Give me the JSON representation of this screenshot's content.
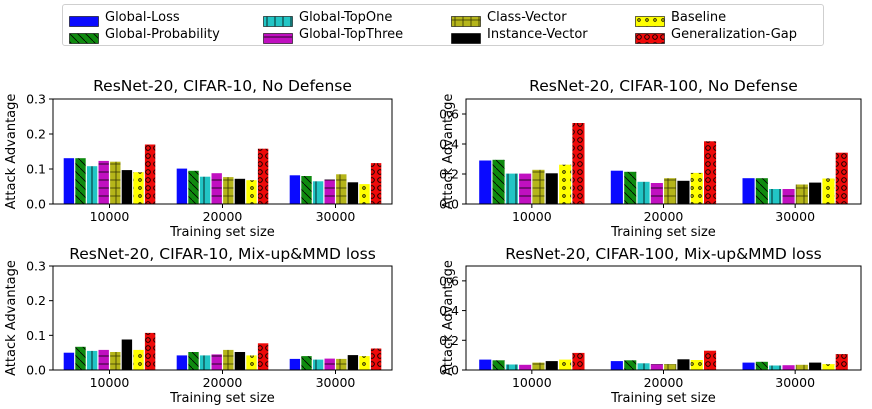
{
  "legend": {
    "items": [
      {
        "label": "Global-Loss",
        "color": "#0a0aff",
        "pattern": "none"
      },
      {
        "label": "Global-Probability",
        "color": "#0f8a0f",
        "pattern": "diag"
      },
      {
        "label": "Global-TopOne",
        "color": "#22c5c5",
        "pattern": "vline"
      },
      {
        "label": "Global-TopThree",
        "color": "#c010c0",
        "pattern": "hline"
      },
      {
        "label": "Class-Vector",
        "color": "#b5b51a",
        "pattern": "cross"
      },
      {
        "label": "Instance-Vector",
        "color": "#000000",
        "pattern": "none"
      },
      {
        "label": "Baseline",
        "color": "#ffff00",
        "pattern": "dots"
      },
      {
        "label": "Generalization-Gap",
        "color": "#ee0a0a",
        "pattern": "rings"
      }
    ]
  },
  "chart_data": [
    {
      "type": "bar",
      "title": "ResNet-20, CIFAR-10, No Defense",
      "xlabel": "Training set size",
      "ylabel": "Attack Advantage",
      "categories": [
        "10000",
        "20000",
        "30000"
      ],
      "ylim": [
        0,
        0.3
      ],
      "yticks": [
        "0.0",
        "0.1",
        "0.2",
        "0.3"
      ],
      "series": [
        {
          "name": "Global-Loss",
          "values": [
            0.131,
            0.101,
            0.082
          ]
        },
        {
          "name": "Global-Probability",
          "values": [
            0.131,
            0.095,
            0.08
          ]
        },
        {
          "name": "Global-TopOne",
          "values": [
            0.108,
            0.078,
            0.065
          ]
        },
        {
          "name": "Global-TopThree",
          "values": [
            0.123,
            0.088,
            0.07
          ]
        },
        {
          "name": "Class-Vector",
          "values": [
            0.121,
            0.077,
            0.085
          ]
        },
        {
          "name": "Instance-Vector",
          "values": [
            0.097,
            0.072,
            0.062
          ]
        },
        {
          "name": "Baseline",
          "values": [
            0.091,
            0.068,
            0.057
          ]
        },
        {
          "name": "Generalization-Gap",
          "values": [
            0.17,
            0.158,
            0.117
          ]
        }
      ]
    },
    {
      "type": "bar",
      "title": "ResNet-20, CIFAR-100, No Defense",
      "xlabel": "Training set size",
      "ylabel": "Attack Advantage",
      "categories": [
        "10000",
        "20000",
        "30000"
      ],
      "ylim": [
        0,
        0.7
      ],
      "yticks": [
        "0.0",
        "0.2",
        "0.4",
        "0.6"
      ],
      "series": [
        {
          "name": "Global-Loss",
          "values": [
            0.29,
            0.222,
            0.172
          ]
        },
        {
          "name": "Global-Probability",
          "values": [
            0.295,
            0.215,
            0.172
          ]
        },
        {
          "name": "Global-TopOne",
          "values": [
            0.203,
            0.148,
            0.1
          ]
        },
        {
          "name": "Global-TopThree",
          "values": [
            0.203,
            0.14,
            0.1
          ]
        },
        {
          "name": "Class-Vector",
          "values": [
            0.228,
            0.172,
            0.13
          ]
        },
        {
          "name": "Instance-Vector",
          "values": [
            0.205,
            0.155,
            0.143
          ]
        },
        {
          "name": "Baseline",
          "values": [
            0.262,
            0.207,
            0.17
          ]
        },
        {
          "name": "Generalization-Gap",
          "values": [
            0.54,
            0.418,
            0.342
          ]
        }
      ]
    },
    {
      "type": "bar",
      "title": "ResNet-20, CIFAR-10, Mix-up&MMD loss",
      "xlabel": "Training set size",
      "ylabel": "Attack Advantage",
      "categories": [
        "10000",
        "20000",
        "30000"
      ],
      "ylim": [
        0,
        0.3
      ],
      "yticks": [
        "0.0",
        "0.1",
        "0.2",
        "0.3"
      ],
      "series": [
        {
          "name": "Global-Loss",
          "values": [
            0.05,
            0.042,
            0.032
          ]
        },
        {
          "name": "Global-Probability",
          "values": [
            0.067,
            0.052,
            0.04
          ]
        },
        {
          "name": "Global-TopOne",
          "values": [
            0.055,
            0.042,
            0.03
          ]
        },
        {
          "name": "Global-TopThree",
          "values": [
            0.058,
            0.045,
            0.033
          ]
        },
        {
          "name": "Class-Vector",
          "values": [
            0.052,
            0.058,
            0.032
          ]
        },
        {
          "name": "Instance-Vector",
          "values": [
            0.088,
            0.052,
            0.043
          ]
        },
        {
          "name": "Baseline",
          "values": [
            0.058,
            0.042,
            0.04
          ]
        },
        {
          "name": "Generalization-Gap",
          "values": [
            0.107,
            0.077,
            0.062
          ]
        }
      ]
    },
    {
      "type": "bar",
      "title": "ResNet-20, CIFAR-100, Mix-up&MMD loss",
      "xlabel": "Training set size",
      "ylabel": "Attack Advantage",
      "categories": [
        "10000",
        "20000",
        "30000"
      ],
      "ylim": [
        0,
        0.7
      ],
      "yticks": [
        "0.0",
        "0.2",
        "0.4",
        "0.6"
      ],
      "series": [
        {
          "name": "Global-Loss",
          "values": [
            0.07,
            0.06,
            0.05
          ]
        },
        {
          "name": "Global-Probability",
          "values": [
            0.065,
            0.065,
            0.055
          ]
        },
        {
          "name": "Global-TopOne",
          "values": [
            0.037,
            0.045,
            0.03
          ]
        },
        {
          "name": "Global-TopThree",
          "values": [
            0.035,
            0.04,
            0.032
          ]
        },
        {
          "name": "Class-Vector",
          "values": [
            0.05,
            0.04,
            0.035
          ]
        },
        {
          "name": "Instance-Vector",
          "values": [
            0.06,
            0.072,
            0.05
          ]
        },
        {
          "name": "Baseline",
          "values": [
            0.07,
            0.067,
            0.04
          ]
        },
        {
          "name": "Generalization-Gap",
          "values": [
            0.115,
            0.13,
            0.107
          ]
        }
      ]
    }
  ]
}
